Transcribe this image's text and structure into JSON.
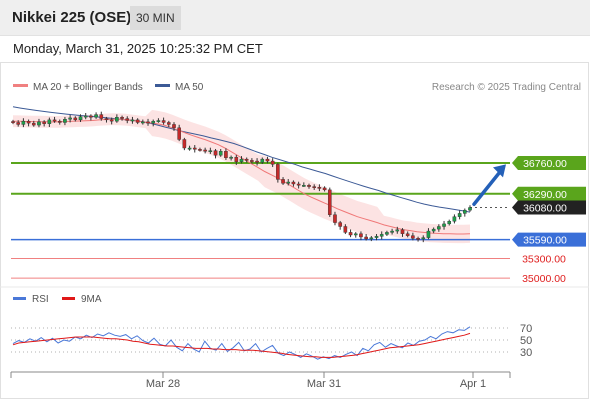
{
  "header": {
    "title": "Nikkei 225 (OSE)",
    "timeframe": "30 MIN",
    "datetime": "Monday, March 31, 2025 10:25:32 PM CET"
  },
  "legend": {
    "ma20_label": "MA 20 + Bollinger Bands",
    "ma50_label": "MA 50",
    "credit": "Research © 2025 Trading Central"
  },
  "rsi_legend": {
    "rsi_label": "RSI",
    "ma_label": "9MA"
  },
  "colors": {
    "resistance": "#5aa51c",
    "pivot": "#3a6fd8",
    "support": "#f08080",
    "current_price_bg": "#222222",
    "ma20": "#f07878",
    "ma50": "#3c5a96",
    "bollinger_fill": "#fcdede",
    "candle_up": "#1e9e4a",
    "candle_down": "#c42a2a",
    "rsi_line": "#4a78d8",
    "rsi_ma_line": "#e01818",
    "arrow": "#2460b8"
  },
  "chart_data": [
    {
      "type": "candlestick",
      "title": "Nikkei 225 (OSE) 30 MIN",
      "y_range": [
        34850,
        37800
      ],
      "x_ticks": [
        "Mar 28",
        "Mar 31",
        "Apr 1"
      ],
      "levels": [
        {
          "value": 36760.0,
          "label": "36760.00",
          "kind": "resistance"
        },
        {
          "value": 36290.0,
          "label": "36290.00",
          "kind": "resistance"
        },
        {
          "value": 36080.0,
          "label": "36080.00",
          "kind": "current"
        },
        {
          "value": 35590.0,
          "label": "35590.00",
          "kind": "pivot"
        },
        {
          "value": 35300.0,
          "label": "35300.00",
          "kind": "support"
        },
        {
          "value": 35000.0,
          "label": "35000.00",
          "kind": "support"
        }
      ],
      "close_series": [
        37380,
        37350,
        37400,
        37370,
        37340,
        37390,
        37360,
        37420,
        37400,
        37380,
        37430,
        37450,
        37420,
        37470,
        37480,
        37460,
        37500,
        37440,
        37420,
        37400,
        37460,
        37440,
        37410,
        37420,
        37380,
        37390,
        37370,
        37400,
        37410,
        37380,
        37350,
        37300,
        37120,
        36990,
        36990,
        36970,
        36960,
        36940,
        36950,
        36880,
        36940,
        36840,
        36850,
        36780,
        36820,
        36800,
        36790,
        36770,
        36820,
        36790,
        36740,
        36510,
        36450,
        36470,
        36440,
        36420,
        36420,
        36400,
        36390,
        36380,
        36350,
        35970,
        35850,
        35790,
        35700,
        35660,
        35680,
        35630,
        35600,
        35620,
        35640,
        35670,
        35700,
        35720,
        35740,
        35680,
        35650,
        35610,
        35600,
        35620,
        35720,
        35750,
        35790,
        35830,
        35870,
        35940,
        35990,
        36040,
        36080
      ],
      "series": [
        {
          "name": "MA 20",
          "values": [
            37400,
            37398,
            37395,
            37393,
            37392,
            37390,
            37388,
            37390,
            37395,
            37398,
            37402,
            37406,
            37410,
            37420,
            37425,
            37430,
            37428,
            37422,
            37410,
            37396,
            37384,
            37372,
            37356,
            37334,
            37300,
            37260,
            37220,
            37184,
            37150,
            37118,
            37080,
            37040,
            36990,
            36930,
            36870,
            36810,
            36750,
            36690,
            36630,
            36580,
            36530,
            36470,
            36410,
            36348,
            36290,
            36240,
            36195,
            36150,
            36108,
            36060,
            36020,
            35980,
            35940,
            35910,
            35880,
            35850,
            35815,
            35790,
            35765,
            35740,
            35728,
            35710,
            35700,
            35690,
            35685,
            35680,
            35678,
            35676,
            35676,
            35680
          ]
        },
        {
          "name": "MA 50",
          "values": [
            37620,
            37600,
            37582,
            37565,
            37550,
            37534,
            37520,
            37508,
            37496,
            37485,
            37475,
            37465,
            37454,
            37442,
            37430,
            37420,
            37408,
            37390,
            37368,
            37340,
            37310,
            37280,
            37250,
            37225,
            37200,
            37175,
            37145,
            37118,
            37090,
            37058,
            37018,
            36974,
            36930,
            36890,
            36848,
            36812,
            36776,
            36740,
            36700,
            36668,
            36632,
            36600,
            36560,
            36520,
            36482,
            36444,
            36408,
            36373,
            36340,
            36300,
            36266,
            36230,
            36196,
            36162,
            36132,
            36108,
            36086,
            36070,
            36050,
            36030,
            36010
          ]
        },
        {
          "name": "RSI",
          "values": [
            44,
            49,
            46,
            52,
            48,
            54,
            47,
            53,
            45,
            50,
            48,
            55,
            52,
            58,
            54,
            60,
            57,
            62,
            58,
            56,
            59,
            52,
            57,
            49,
            45,
            53,
            43,
            40,
            50,
            38,
            32,
            44,
            35,
            30,
            48,
            36,
            33,
            44,
            31,
            37,
            46,
            32,
            35,
            44,
            30,
            36,
            41,
            28,
            24,
            30,
            26,
            21,
            27,
            23,
            18,
            22,
            19,
            24,
            21,
            26,
            30,
            24,
            36,
            32,
            42,
            46,
            38,
            44,
            40,
            37,
            45,
            41,
            48,
            50,
            56,
            52,
            60,
            64,
            62,
            67,
            66,
            72
          ]
        },
        {
          "name": "9MA",
          "values": [
            42,
            45,
            46,
            47,
            48,
            49,
            50,
            51,
            52,
            53,
            54,
            55,
            55,
            55,
            55,
            54,
            53,
            52,
            52,
            51,
            50,
            48,
            47,
            45,
            43,
            42,
            41,
            40,
            40,
            39,
            38,
            37,
            36,
            36,
            36,
            35,
            35,
            34,
            34,
            34,
            33,
            33,
            33,
            32,
            31,
            30,
            29,
            28,
            26,
            25,
            24,
            23,
            22,
            22,
            21,
            21,
            21,
            22,
            23,
            24,
            25,
            27,
            29,
            31,
            33,
            35,
            37,
            38,
            39,
            40,
            41,
            42,
            44,
            46,
            48,
            50,
            52,
            54,
            56,
            58,
            61
          ]
        }
      ]
    },
    {
      "type": "line",
      "title": "RSI",
      "y_range": [
        0,
        100
      ],
      "y_ticks": [
        70,
        50,
        30
      ]
    }
  ]
}
